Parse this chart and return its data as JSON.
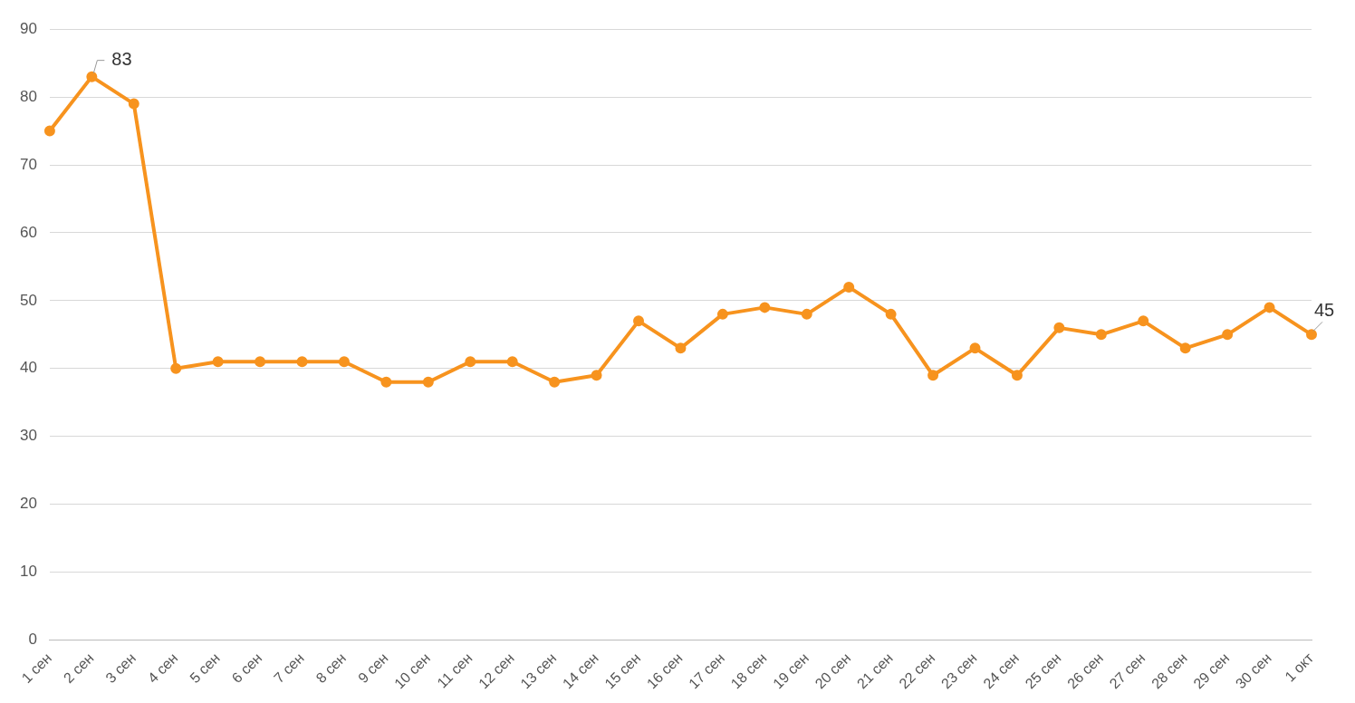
{
  "chart_data": {
    "type": "line",
    "categories": [
      "1 сен",
      "2 сен",
      "3 сен",
      "4 сен",
      "5 сен",
      "6 сен",
      "7 сен",
      "8 сен",
      "9 сен",
      "10 сен",
      "11 сен",
      "12 сен",
      "13 сен",
      "14 сен",
      "15 сен",
      "16 сен",
      "17 сен",
      "18 сен",
      "19 сен",
      "20 сен",
      "21 сен",
      "22 сен",
      "23 сен",
      "24 сен",
      "25 сен",
      "26 сен",
      "27 сен",
      "28 сен",
      "29 сен",
      "30 сен",
      "1 окт"
    ],
    "series": [
      {
        "color": "#f7931e",
        "values": [
          75,
          83,
          79,
          40,
          41,
          41,
          41,
          41,
          38,
          38,
          41,
          41,
          38,
          39,
          47,
          43,
          48,
          49,
          48,
          52,
          48,
          39,
          43,
          39,
          46,
          45,
          47,
          43,
          45,
          49,
          45
        ]
      }
    ],
    "ylim": [
      0,
      90
    ],
    "yticks": [
      0,
      10,
      20,
      30,
      40,
      50,
      60,
      70,
      80,
      90
    ],
    "grid": "y",
    "legend": false,
    "marker": "circle",
    "line_style": "solid",
    "annotations": [
      {
        "text": "83",
        "x": "2 сен",
        "y": 83
      },
      {
        "text": "45",
        "x": "1 окт",
        "y": 45
      }
    ]
  }
}
